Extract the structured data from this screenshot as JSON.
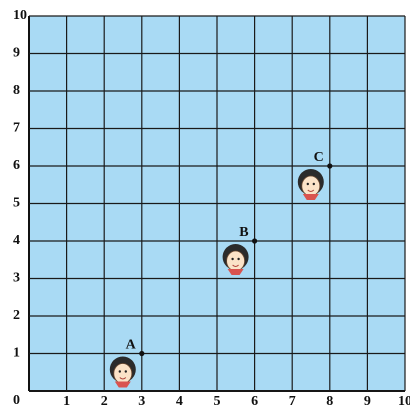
{
  "chart_data": {
    "type": "scatter",
    "x": [
      3,
      6,
      8
    ],
    "values": [
      1,
      4,
      6
    ],
    "point_labels": [
      "A",
      "B",
      "C"
    ],
    "xlim": [
      0,
      10
    ],
    "ylim": [
      0,
      10
    ],
    "xticks": [
      1,
      2,
      3,
      4,
      5,
      6,
      7,
      8,
      9,
      10
    ],
    "yticks": [
      0,
      1,
      2,
      3,
      4,
      5,
      6,
      7,
      8,
      9,
      10
    ],
    "grid": true,
    "color": "#111111",
    "background": "#a9daf4"
  }
}
